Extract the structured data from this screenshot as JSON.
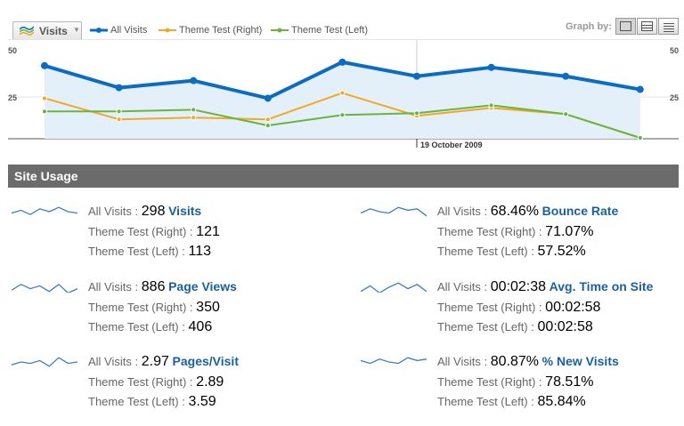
{
  "toolbar": {
    "metric_selector": "Visits",
    "legend": [
      {
        "label": "All Visits",
        "color": "#0b6cc4"
      },
      {
        "label": "Theme Test (Right)",
        "color": "#f5a623"
      },
      {
        "label": "Theme Test (Left)",
        "color": "#6ab43e"
      }
    ],
    "graph_by_label": "Graph by:"
  },
  "chart_data": {
    "type": "line",
    "x_annotation": "19 October 2009",
    "y_ticks": [
      50,
      25
    ],
    "ylim": [
      0,
      50
    ],
    "x": [
      0,
      1,
      2,
      3,
      4,
      5,
      6,
      7,
      8
    ],
    "series": [
      {
        "name": "All Visits",
        "color": "#0b6cc4",
        "values": [
          41.5,
          29.0,
          33.0,
          23.0,
          43.5,
          35.5,
          40.5,
          35.5,
          28.0
        ]
      },
      {
        "name": "Theme Test (Right)",
        "color": "#f5a623",
        "values": [
          23.0,
          11.0,
          12.0,
          11.0,
          26.0,
          13.0,
          17.5,
          14.0,
          0.5
        ]
      },
      {
        "name": "Theme Test (Left)",
        "color": "#6ab43e",
        "values": [
          15.5,
          15.5,
          16.5,
          7.5,
          13.5,
          14.5,
          19.0,
          14.0,
          0.5
        ]
      }
    ]
  },
  "site_usage": {
    "title": "Site Usage",
    "all_visits_label": "All Visits",
    "right_label": "Theme Test (Right)",
    "left_label": "Theme Test (Left)",
    "sep": ":",
    "metrics": [
      {
        "name": "Visits",
        "all": "298",
        "right": "121",
        "left": "113"
      },
      {
        "name": "Bounce Rate",
        "all": "68.46%",
        "right": "71.07%",
        "left": "57.52%"
      },
      {
        "name": "Page Views",
        "all": "886",
        "right": "350",
        "left": "406"
      },
      {
        "name": "Avg. Time on Site",
        "all": "00:02:38",
        "right": "00:02:58",
        "left": "00:02:58"
      },
      {
        "name": "Pages/Visit",
        "all": "2.97",
        "right": "2.89",
        "left": "3.59"
      },
      {
        "name": "% New Visits",
        "all": "80.87%",
        "right": "78.51%",
        "left": "85.84%"
      }
    ]
  }
}
